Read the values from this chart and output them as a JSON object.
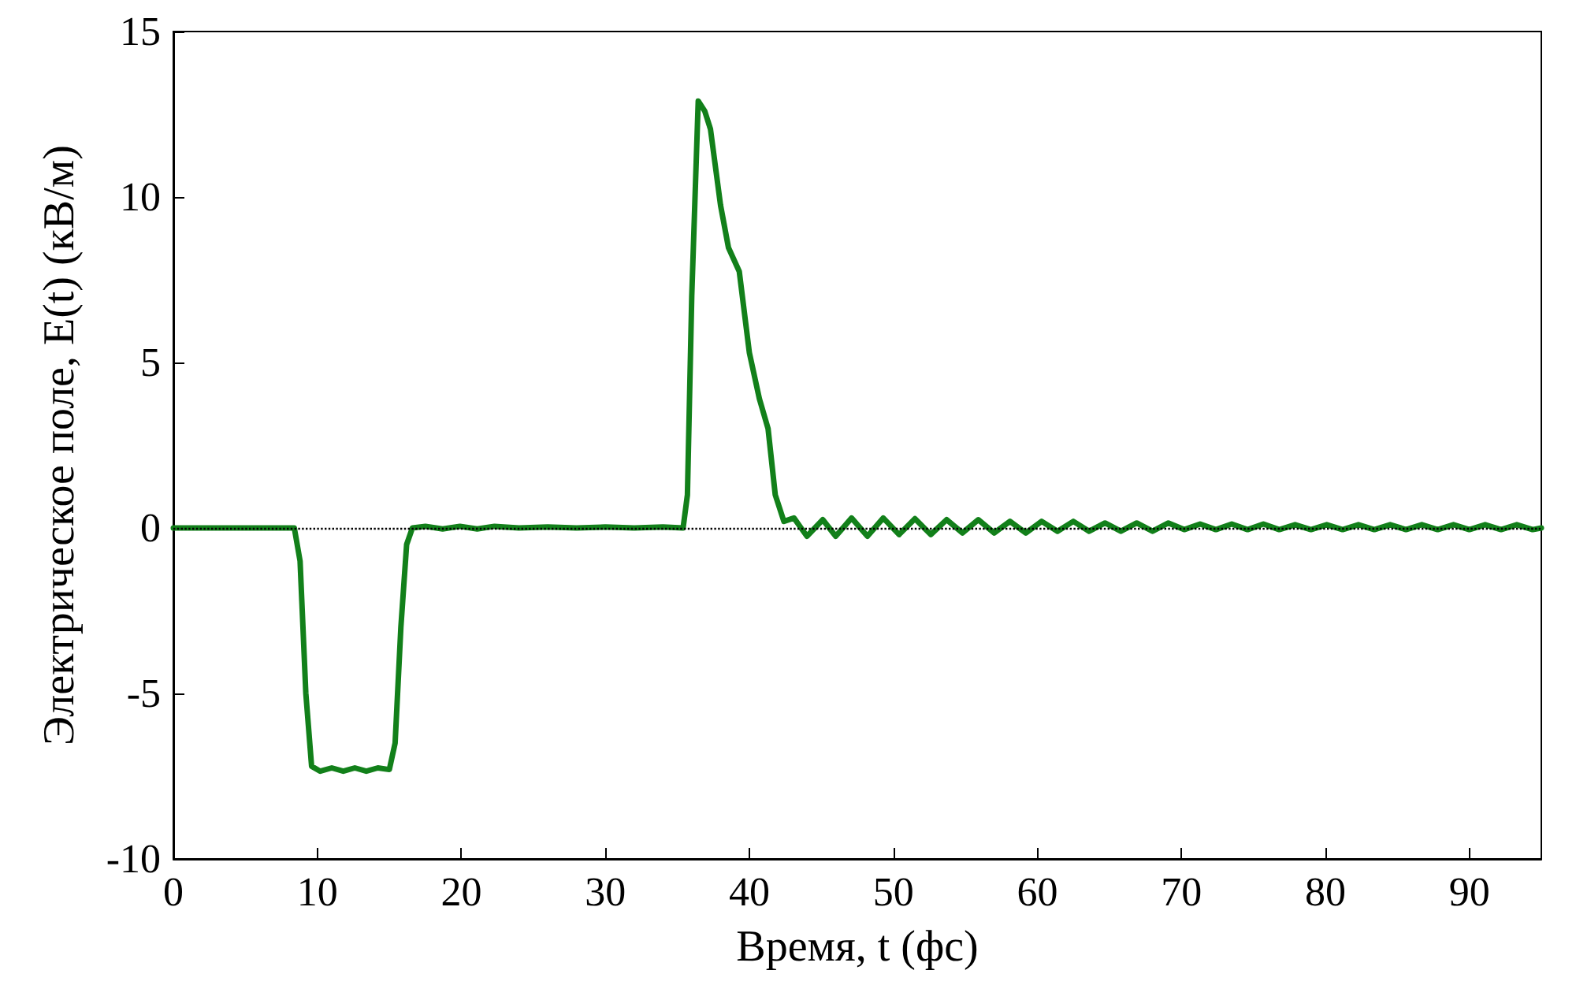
{
  "chart_data": {
    "type": "line",
    "xlabel": "Время, t (фс)",
    "ylabel": "Электрическое поле, E(t) (кВ/м)",
    "xlim": [
      0,
      95
    ],
    "xticks": [
      0,
      10,
      20,
      30,
      40,
      50,
      60,
      70,
      80,
      90
    ],
    "ylim": [
      -10,
      15
    ],
    "yticks": [
      -10,
      -5,
      0,
      5,
      10,
      15
    ],
    "grid": false,
    "marker": "none",
    "line_style": "solid",
    "ref_lines": [
      {
        "axis": "y",
        "value": 0,
        "color": "#000000",
        "line_style": "dotted"
      }
    ],
    "series": [
      {
        "color": "#12801a",
        "x": [
          0,
          8.4,
          8.8,
          9.2,
          9.6,
          10.2,
          11,
          11.8,
          12.6,
          13.4,
          14.2,
          15.0,
          15.4,
          15.8,
          16.2,
          16.6,
          17.5,
          18.7,
          19.9,
          21.1,
          22.3,
          24,
          26,
          28,
          30,
          32,
          34,
          35.4,
          35.7,
          36.0,
          36.45,
          36.9,
          37.3,
          38.0,
          38.55,
          39.3,
          40.0,
          40.7,
          41.3,
          41.8,
          42.4,
          43.1,
          44.0,
          45.1,
          46.0,
          47.1,
          48.2,
          49.3,
          50.4,
          51.5,
          52.6,
          53.7,
          54.8,
          55.9,
          57.0,
          58.1,
          59.2,
          60.3,
          61.4,
          62.5,
          63.6,
          64.7,
          65.8,
          66.9,
          68.0,
          69.1,
          70.2,
          71.3,
          72.4,
          73.5,
          74.6,
          75.7,
          76.8,
          77.9,
          79.0,
          80.1,
          81.2,
          82.3,
          83.4,
          84.5,
          85.6,
          86.7,
          87.8,
          88.9,
          90.0,
          91.1,
          92.2,
          93.3,
          94.4,
          95
        ],
        "values": [
          0,
          0,
          -1,
          -5,
          -7.2,
          -7.35,
          -7.25,
          -7.35,
          -7.25,
          -7.35,
          -7.25,
          -7.3,
          -6.5,
          -3,
          -0.5,
          0,
          0.05,
          -0.03,
          0.05,
          -0.03,
          0.05,
          0,
          0.03,
          0,
          0.03,
          0,
          0.03,
          0,
          1,
          7,
          12.9,
          12.6,
          12.05,
          9.75,
          8.47,
          7.75,
          5.3,
          3.9,
          3.0,
          1.0,
          0.2,
          0.3,
          -0.25,
          0.25,
          -0.25,
          0.3,
          -0.25,
          0.3,
          -0.2,
          0.28,
          -0.2,
          0.25,
          -0.15,
          0.25,
          -0.15,
          0.2,
          -0.15,
          0.2,
          -0.1,
          0.2,
          -0.1,
          0.15,
          -0.1,
          0.15,
          -0.1,
          0.15,
          -0.05,
          0.12,
          -0.05,
          0.12,
          -0.05,
          0.12,
          -0.05,
          0.1,
          -0.05,
          0.1,
          -0.05,
          0.1,
          -0.05,
          0.1,
          -0.05,
          0.1,
          -0.05,
          0.1,
          -0.05,
          0.1,
          -0.05,
          0.1,
          -0.05,
          0
        ]
      }
    ]
  }
}
